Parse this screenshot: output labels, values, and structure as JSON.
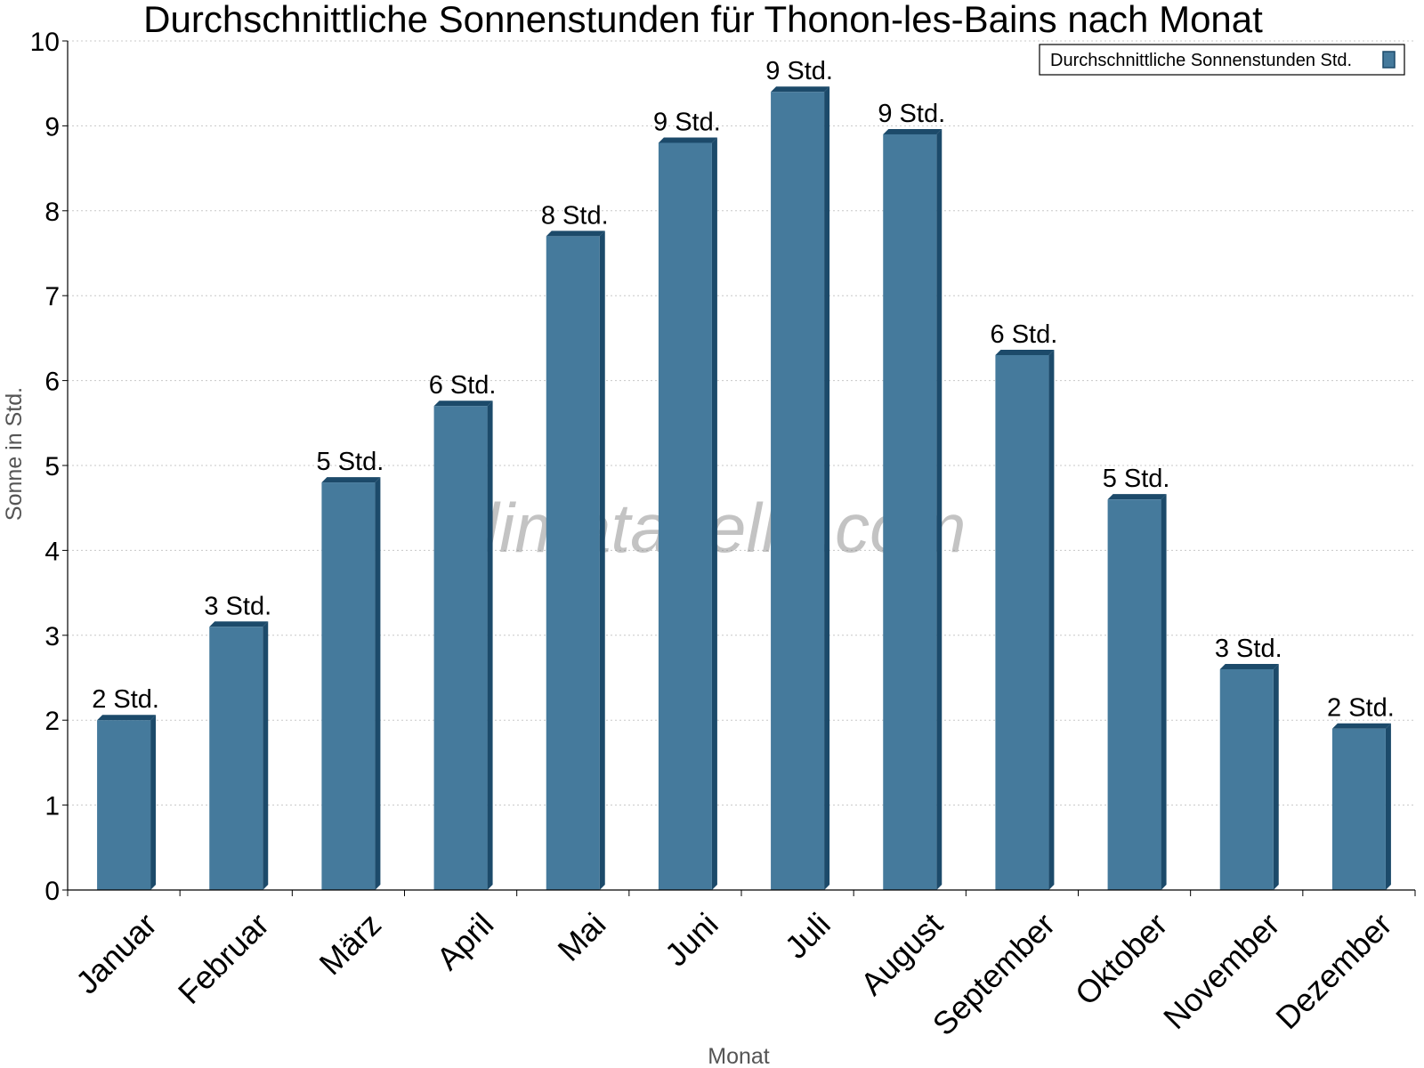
{
  "chart_data": {
    "type": "bar",
    "title": "Durchschnittliche Sonnenstunden für Thonon-les-Bains nach Monat",
    "xlabel": "Monat",
    "ylabel": "Sonne in Std.",
    "ylim": [
      0,
      10
    ],
    "yticks": [
      "0",
      "1",
      "2",
      "3",
      "4",
      "5",
      "6",
      "7",
      "8",
      "9",
      "10"
    ],
    "grid": true,
    "legend_position": "top-right",
    "categories": [
      "Januar",
      "Februar",
      "März",
      "April",
      "Mai",
      "Juni",
      "Juli",
      "August",
      "September",
      "Oktober",
      "November",
      "Dezember"
    ],
    "series": [
      {
        "name": "Durchschnittliche Sonnenstunden Std.",
        "values": [
          2.0,
          3.1,
          4.8,
          5.7,
          7.7,
          8.8,
          9.4,
          8.9,
          6.3,
          4.6,
          2.6,
          1.9
        ],
        "labels": [
          "2 Std.",
          "3 Std.",
          "5 Std.",
          "6 Std.",
          "8 Std.",
          "9 Std.",
          "9 Std.",
          "9 Std.",
          "6 Std.",
          "5 Std.",
          "3 Std.",
          "2 Std."
        ]
      }
    ],
    "colors": {
      "bar": "#457a9c",
      "bar_side": "#1c4a6a",
      "bar_top": "#1c4a6a",
      "grid": "#c8c8c8"
    },
    "watermark": "klimatabelle.com"
  }
}
